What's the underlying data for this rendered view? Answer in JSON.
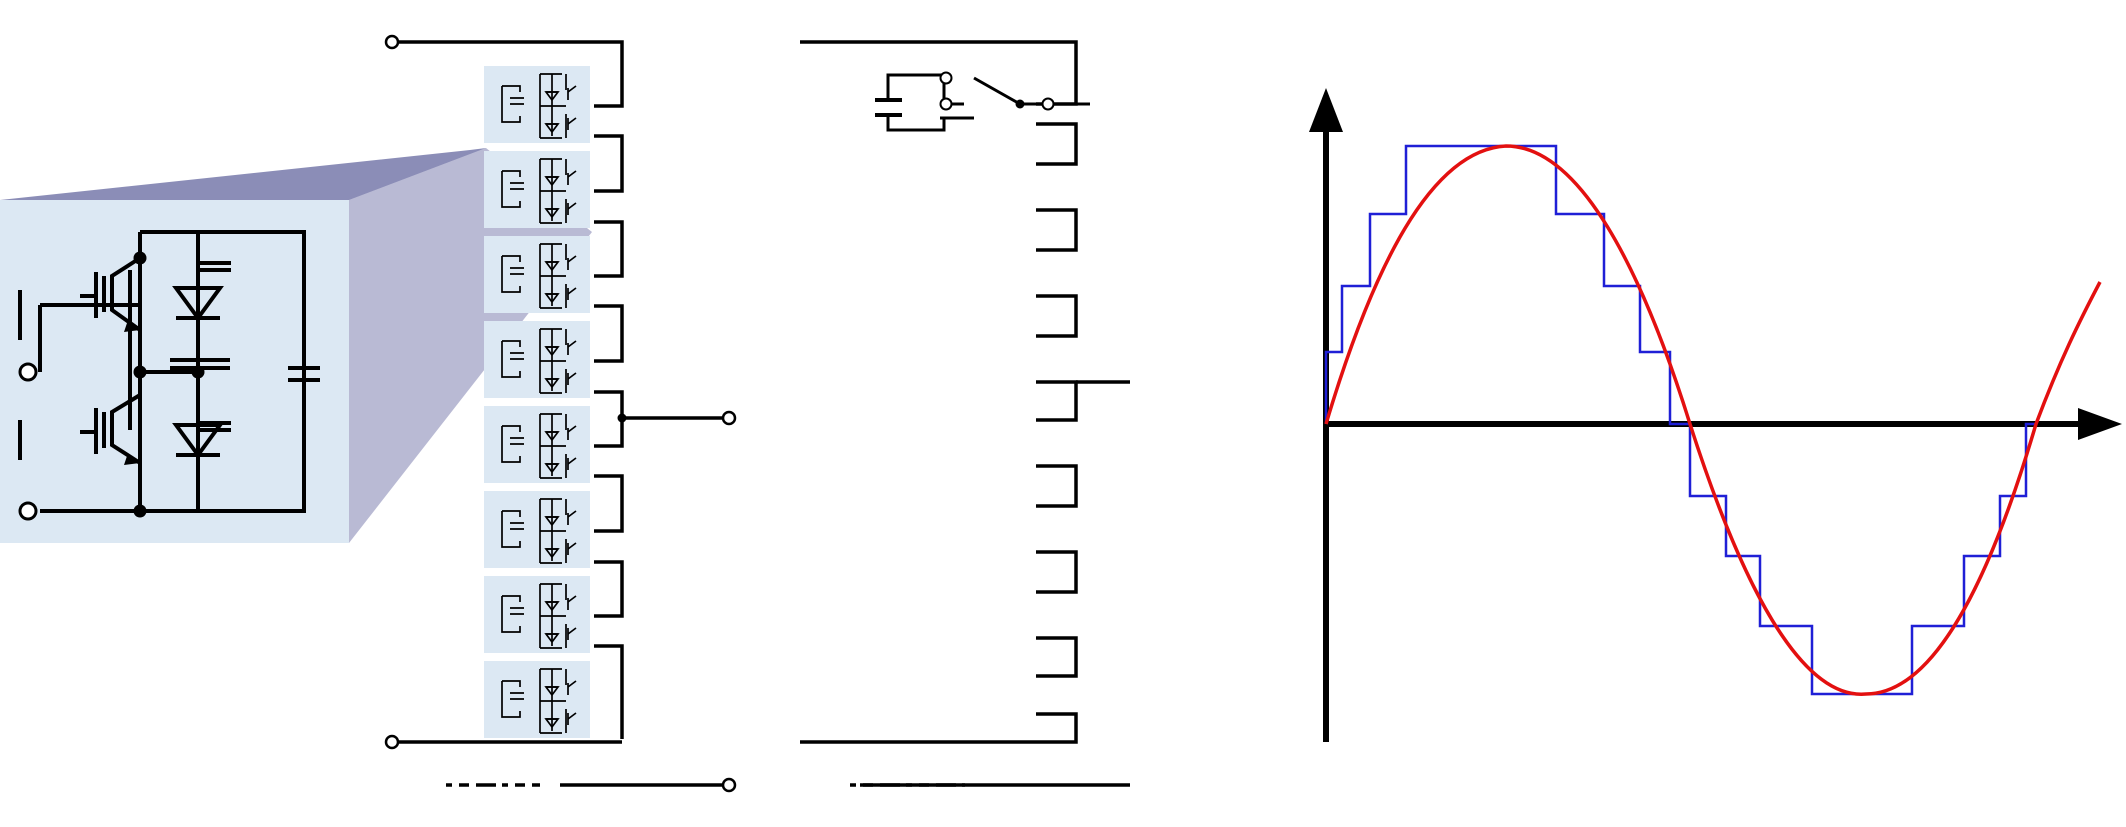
{
  "diagram": {
    "submodule_count": 8,
    "colors": {
      "wire": "#000000",
      "submodule_fill": "#dce8f3",
      "zoom_projection": "#2c2f7c",
      "staircase_waveform": "#1f1fd6",
      "sine_waveform": "#e31010",
      "axis": "#000000"
    },
    "panels": [
      {
        "name": "half-bridge-submodule-detail"
      },
      {
        "name": "submodule-chain"
      },
      {
        "name": "switch-equivalent-chain"
      },
      {
        "name": "multilevel-output-waveform"
      }
    ],
    "waveform": {
      "levels_per_half_cycle": 8,
      "traces": [
        "staircase-approximation",
        "ideal-sine"
      ]
    }
  }
}
